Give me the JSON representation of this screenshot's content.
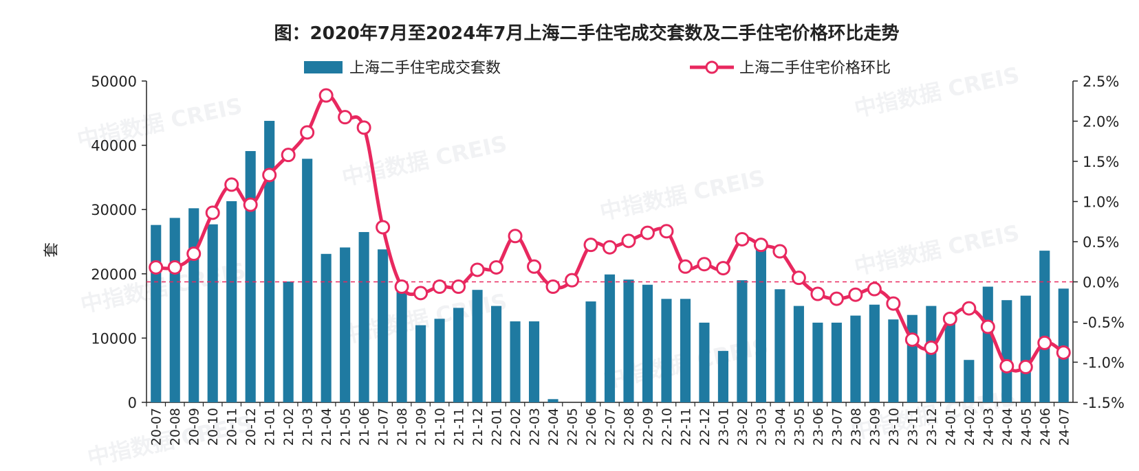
{
  "chart_data": {
    "type": "bar",
    "title": "图：2020年7月至2024年7月上海二手住宅成交套数及二手住宅价格环比走势",
    "ylabel_left": "套",
    "watermark": "中指数据 CREIS",
    "legend_position": "top-center",
    "categories": [
      "20-07",
      "20-08",
      "20-09",
      "20-10",
      "20-11",
      "20-12",
      "21-01",
      "21-02",
      "21-03",
      "21-04",
      "21-05",
      "21-06",
      "21-07",
      "21-08",
      "21-09",
      "21-10",
      "21-11",
      "21-12",
      "22-01",
      "22-02",
      "22-03",
      "22-04",
      "22-05",
      "22-06",
      "22-07",
      "22-08",
      "22-09",
      "22-10",
      "22-11",
      "22-12",
      "23-01",
      "23-02",
      "23-03",
      "23-04",
      "23-05",
      "23-06",
      "23-07",
      "23-08",
      "23-09",
      "23-10",
      "23-11",
      "23-12",
      "24-01",
      "24-02",
      "24-03",
      "24-04",
      "24-05",
      "24-06",
      "24-07"
    ],
    "y_left": {
      "min": 0,
      "max": 50000,
      "ticks": [
        "0",
        "10000",
        "20000",
        "30000",
        "40000",
        "50000"
      ]
    },
    "y_right": {
      "min": -1.5,
      "max": 2.5,
      "ticks": [
        "-1.5%",
        "-1.0%",
        "-0.5%",
        "0.0%",
        "0.5%",
        "1.0%",
        "1.5%",
        "2.0%",
        "2.5%"
      ]
    },
    "series": [
      {
        "name": "上海二手住宅成交套数",
        "type": "bar",
        "axis": "left",
        "color": "#1f7aa1",
        "values": [
          27600,
          28700,
          30200,
          27700,
          31300,
          39100,
          43800,
          18800,
          37900,
          23100,
          24100,
          26500,
          23800,
          17800,
          12000,
          13000,
          14700,
          17500,
          15000,
          12600,
          12600,
          500,
          0,
          15700,
          19900,
          19100,
          18300,
          16100,
          16100,
          12400,
          8000,
          19000,
          23800,
          17600,
          15000,
          12400,
          12400,
          13500,
          15200,
          12900,
          13600,
          15000,
          13300,
          6600,
          18000,
          15900,
          16600,
          23600,
          17700
        ]
      },
      {
        "name": "上海二手住宅价格环比",
        "type": "line",
        "axis": "right",
        "color": "#e8285f",
        "values": [
          0.18,
          0.18,
          0.35,
          0.86,
          1.21,
          0.96,
          1.33,
          1.58,
          1.86,
          2.32,
          2.05,
          1.92,
          0.68,
          -0.06,
          -0.14,
          -0.06,
          -0.06,
          0.15,
          0.18,
          0.57,
          0.19,
          -0.06,
          0.02,
          0.46,
          0.43,
          0.51,
          0.61,
          0.63,
          0.19,
          0.22,
          0.17,
          0.53,
          0.46,
          0.38,
          0.05,
          -0.15,
          -0.21,
          -0.16,
          -0.09,
          -0.27,
          -0.72,
          -0.82,
          -0.46,
          -0.33,
          -0.56,
          -1.05,
          -1.06,
          -0.76,
          -0.88
        ]
      }
    ],
    "reference_line": {
      "axis": "right",
      "value": 0.0,
      "style": "dashed",
      "color": "#e8285f"
    }
  }
}
